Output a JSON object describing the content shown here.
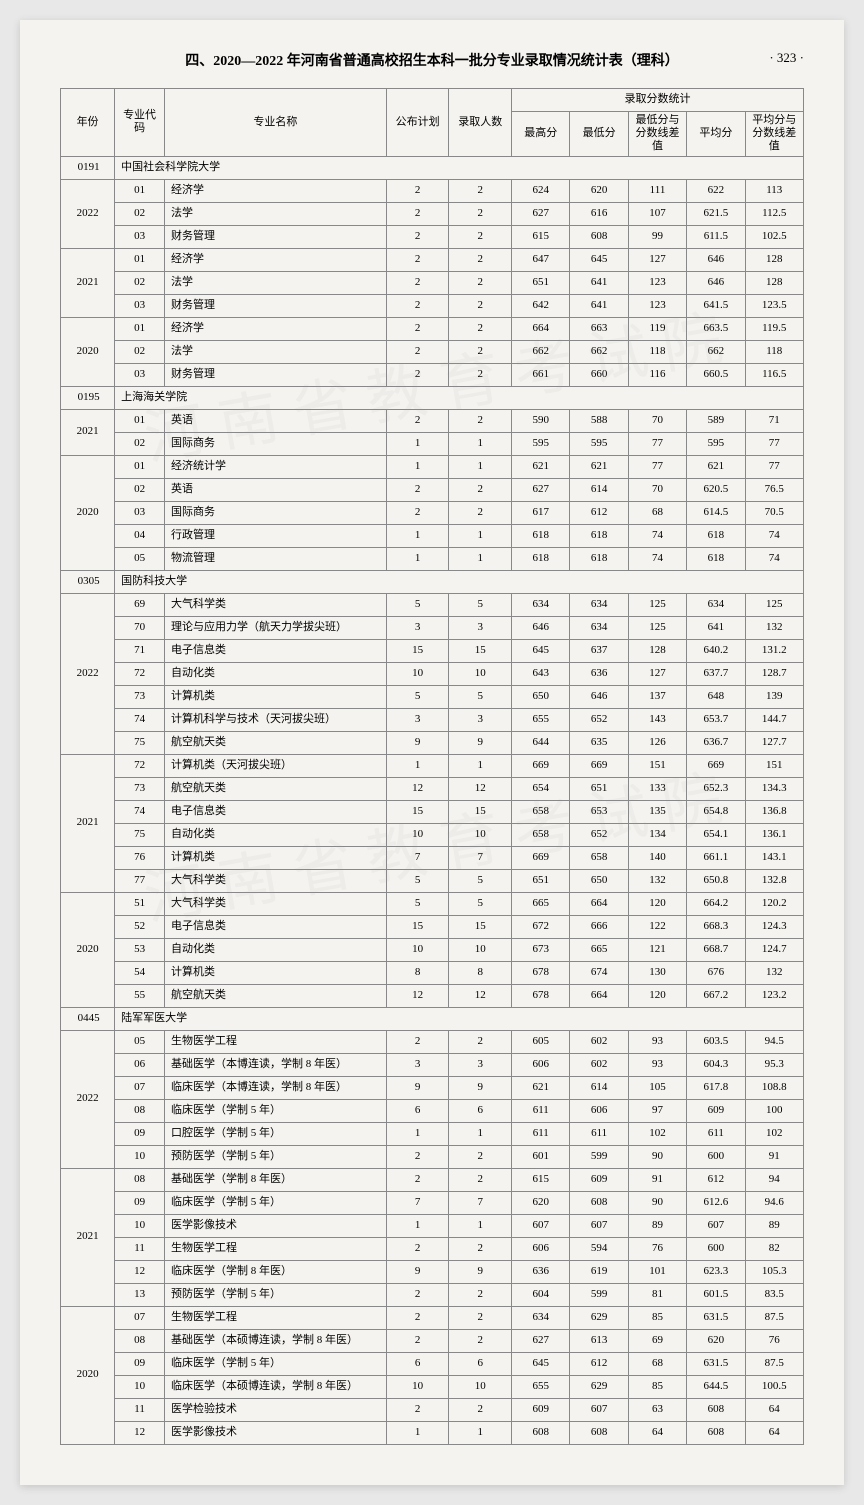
{
  "header": {
    "title": "四、2020—2022 年河南省普通高校招生本科一批分专业录取情况统计表（理科）",
    "page_num": "· 323 ·"
  },
  "columns": {
    "year": "年份",
    "major_code": "专业代码",
    "major_name": "专业名称",
    "plan": "公布计划",
    "admitted": "录取人数",
    "score_stats": "录取分数统计",
    "max": "最高分",
    "min": "最低分",
    "min_diff": "最低分与分数线差值",
    "avg": "平均分",
    "avg_diff": "平均分与分数线差值"
  },
  "schools": [
    {
      "code": "0191",
      "name": "中国社会科学院大学",
      "years": [
        {
          "year": "2022",
          "rows": [
            {
              "c": "01",
              "n": "经济学",
              "p": "2",
              "a": "2",
              "mx": "624",
              "mn": "620",
              "md": "111",
              "av": "622",
              "ad": "113"
            },
            {
              "c": "02",
              "n": "法学",
              "p": "2",
              "a": "2",
              "mx": "627",
              "mn": "616",
              "md": "107",
              "av": "621.5",
              "ad": "112.5"
            },
            {
              "c": "03",
              "n": "财务管理",
              "p": "2",
              "a": "2",
              "mx": "615",
              "mn": "608",
              "md": "99",
              "av": "611.5",
              "ad": "102.5"
            }
          ]
        },
        {
          "year": "2021",
          "rows": [
            {
              "c": "01",
              "n": "经济学",
              "p": "2",
              "a": "2",
              "mx": "647",
              "mn": "645",
              "md": "127",
              "av": "646",
              "ad": "128"
            },
            {
              "c": "02",
              "n": "法学",
              "p": "2",
              "a": "2",
              "mx": "651",
              "mn": "641",
              "md": "123",
              "av": "646",
              "ad": "128"
            },
            {
              "c": "03",
              "n": "财务管理",
              "p": "2",
              "a": "2",
              "mx": "642",
              "mn": "641",
              "md": "123",
              "av": "641.5",
              "ad": "123.5"
            }
          ]
        },
        {
          "year": "2020",
          "rows": [
            {
              "c": "01",
              "n": "经济学",
              "p": "2",
              "a": "2",
              "mx": "664",
              "mn": "663",
              "md": "119",
              "av": "663.5",
              "ad": "119.5"
            },
            {
              "c": "02",
              "n": "法学",
              "p": "2",
              "a": "2",
              "mx": "662",
              "mn": "662",
              "md": "118",
              "av": "662",
              "ad": "118"
            },
            {
              "c": "03",
              "n": "财务管理",
              "p": "2",
              "a": "2",
              "mx": "661",
              "mn": "660",
              "md": "116",
              "av": "660.5",
              "ad": "116.5"
            }
          ]
        }
      ]
    },
    {
      "code": "0195",
      "name": "上海海关学院",
      "years": [
        {
          "year": "2021",
          "rows": [
            {
              "c": "01",
              "n": "英语",
              "p": "2",
              "a": "2",
              "mx": "590",
              "mn": "588",
              "md": "70",
              "av": "589",
              "ad": "71"
            },
            {
              "c": "02",
              "n": "国际商务",
              "p": "1",
              "a": "1",
              "mx": "595",
              "mn": "595",
              "md": "77",
              "av": "595",
              "ad": "77"
            }
          ]
        },
        {
          "year": "2020",
          "rows": [
            {
              "c": "01",
              "n": "经济统计学",
              "p": "1",
              "a": "1",
              "mx": "621",
              "mn": "621",
              "md": "77",
              "av": "621",
              "ad": "77"
            },
            {
              "c": "02",
              "n": "英语",
              "p": "2",
              "a": "2",
              "mx": "627",
              "mn": "614",
              "md": "70",
              "av": "620.5",
              "ad": "76.5"
            },
            {
              "c": "03",
              "n": "国际商务",
              "p": "2",
              "a": "2",
              "mx": "617",
              "mn": "612",
              "md": "68",
              "av": "614.5",
              "ad": "70.5"
            },
            {
              "c": "04",
              "n": "行政管理",
              "p": "1",
              "a": "1",
              "mx": "618",
              "mn": "618",
              "md": "74",
              "av": "618",
              "ad": "74"
            },
            {
              "c": "05",
              "n": "物流管理",
              "p": "1",
              "a": "1",
              "mx": "618",
              "mn": "618",
              "md": "74",
              "av": "618",
              "ad": "74"
            }
          ]
        }
      ]
    },
    {
      "code": "0305",
      "name": "国防科技大学",
      "years": [
        {
          "year": "2022",
          "rows": [
            {
              "c": "69",
              "n": "大气科学类",
              "p": "5",
              "a": "5",
              "mx": "634",
              "mn": "634",
              "md": "125",
              "av": "634",
              "ad": "125"
            },
            {
              "c": "70",
              "n": "理论与应用力学（航天力学拔尖班）",
              "p": "3",
              "a": "3",
              "mx": "646",
              "mn": "634",
              "md": "125",
              "av": "641",
              "ad": "132"
            },
            {
              "c": "71",
              "n": "电子信息类",
              "p": "15",
              "a": "15",
              "mx": "645",
              "mn": "637",
              "md": "128",
              "av": "640.2",
              "ad": "131.2"
            },
            {
              "c": "72",
              "n": "自动化类",
              "p": "10",
              "a": "10",
              "mx": "643",
              "mn": "636",
              "md": "127",
              "av": "637.7",
              "ad": "128.7"
            },
            {
              "c": "73",
              "n": "计算机类",
              "p": "5",
              "a": "5",
              "mx": "650",
              "mn": "646",
              "md": "137",
              "av": "648",
              "ad": "139"
            },
            {
              "c": "74",
              "n": "计算机科学与技术（天河拔尖班）",
              "p": "3",
              "a": "3",
              "mx": "655",
              "mn": "652",
              "md": "143",
              "av": "653.7",
              "ad": "144.7"
            },
            {
              "c": "75",
              "n": "航空航天类",
              "p": "9",
              "a": "9",
              "mx": "644",
              "mn": "635",
              "md": "126",
              "av": "636.7",
              "ad": "127.7"
            }
          ]
        },
        {
          "year": "2021",
          "rows": [
            {
              "c": "72",
              "n": "计算机类（天河拔尖班）",
              "p": "1",
              "a": "1",
              "mx": "669",
              "mn": "669",
              "md": "151",
              "av": "669",
              "ad": "151"
            },
            {
              "c": "73",
              "n": "航空航天类",
              "p": "12",
              "a": "12",
              "mx": "654",
              "mn": "651",
              "md": "133",
              "av": "652.3",
              "ad": "134.3"
            },
            {
              "c": "74",
              "n": "电子信息类",
              "p": "15",
              "a": "15",
              "mx": "658",
              "mn": "653",
              "md": "135",
              "av": "654.8",
              "ad": "136.8"
            },
            {
              "c": "75",
              "n": "自动化类",
              "p": "10",
              "a": "10",
              "mx": "658",
              "mn": "652",
              "md": "134",
              "av": "654.1",
              "ad": "136.1"
            },
            {
              "c": "76",
              "n": "计算机类",
              "p": "7",
              "a": "7",
              "mx": "669",
              "mn": "658",
              "md": "140",
              "av": "661.1",
              "ad": "143.1"
            },
            {
              "c": "77",
              "n": "大气科学类",
              "p": "5",
              "a": "5",
              "mx": "651",
              "mn": "650",
              "md": "132",
              "av": "650.8",
              "ad": "132.8"
            }
          ]
        },
        {
          "year": "2020",
          "rows": [
            {
              "c": "51",
              "n": "大气科学类",
              "p": "5",
              "a": "5",
              "mx": "665",
              "mn": "664",
              "md": "120",
              "av": "664.2",
              "ad": "120.2"
            },
            {
              "c": "52",
              "n": "电子信息类",
              "p": "15",
              "a": "15",
              "mx": "672",
              "mn": "666",
              "md": "122",
              "av": "668.3",
              "ad": "124.3"
            },
            {
              "c": "53",
              "n": "自动化类",
              "p": "10",
              "a": "10",
              "mx": "673",
              "mn": "665",
              "md": "121",
              "av": "668.7",
              "ad": "124.7"
            },
            {
              "c": "54",
              "n": "计算机类",
              "p": "8",
              "a": "8",
              "mx": "678",
              "mn": "674",
              "md": "130",
              "av": "676",
              "ad": "132"
            },
            {
              "c": "55",
              "n": "航空航天类",
              "p": "12",
              "a": "12",
              "mx": "678",
              "mn": "664",
              "md": "120",
              "av": "667.2",
              "ad": "123.2"
            }
          ]
        }
      ]
    },
    {
      "code": "0445",
      "name": "陆军军医大学",
      "years": [
        {
          "year": "2022",
          "rows": [
            {
              "c": "05",
              "n": "生物医学工程",
              "p": "2",
              "a": "2",
              "mx": "605",
              "mn": "602",
              "md": "93",
              "av": "603.5",
              "ad": "94.5"
            },
            {
              "c": "06",
              "n": "基础医学（本博连读，学制 8 年医）",
              "p": "3",
              "a": "3",
              "mx": "606",
              "mn": "602",
              "md": "93",
              "av": "604.3",
              "ad": "95.3"
            },
            {
              "c": "07",
              "n": "临床医学（本博连读，学制 8 年医）",
              "p": "9",
              "a": "9",
              "mx": "621",
              "mn": "614",
              "md": "105",
              "av": "617.8",
              "ad": "108.8"
            },
            {
              "c": "08",
              "n": "临床医学（学制 5 年）",
              "p": "6",
              "a": "6",
              "mx": "611",
              "mn": "606",
              "md": "97",
              "av": "609",
              "ad": "100"
            },
            {
              "c": "09",
              "n": "口腔医学（学制 5 年）",
              "p": "1",
              "a": "1",
              "mx": "611",
              "mn": "611",
              "md": "102",
              "av": "611",
              "ad": "102"
            },
            {
              "c": "10",
              "n": "预防医学（学制 5 年）",
              "p": "2",
              "a": "2",
              "mx": "601",
              "mn": "599",
              "md": "90",
              "av": "600",
              "ad": "91"
            }
          ]
        },
        {
          "year": "2021",
          "rows": [
            {
              "c": "08",
              "n": "基础医学（学制 8 年医）",
              "p": "2",
              "a": "2",
              "mx": "615",
              "mn": "609",
              "md": "91",
              "av": "612",
              "ad": "94"
            },
            {
              "c": "09",
              "n": "临床医学（学制 5 年）",
              "p": "7",
              "a": "7",
              "mx": "620",
              "mn": "608",
              "md": "90",
              "av": "612.6",
              "ad": "94.6"
            },
            {
              "c": "10",
              "n": "医学影像技术",
              "p": "1",
              "a": "1",
              "mx": "607",
              "mn": "607",
              "md": "89",
              "av": "607",
              "ad": "89"
            },
            {
              "c": "11",
              "n": "生物医学工程",
              "p": "2",
              "a": "2",
              "mx": "606",
              "mn": "594",
              "md": "76",
              "av": "600",
              "ad": "82"
            },
            {
              "c": "12",
              "n": "临床医学（学制 8 年医）",
              "p": "9",
              "a": "9",
              "mx": "636",
              "mn": "619",
              "md": "101",
              "av": "623.3",
              "ad": "105.3"
            },
            {
              "c": "13",
              "n": "预防医学（学制 5 年）",
              "p": "2",
              "a": "2",
              "mx": "604",
              "mn": "599",
              "md": "81",
              "av": "601.5",
              "ad": "83.5"
            }
          ]
        },
        {
          "year": "2020",
          "rows": [
            {
              "c": "07",
              "n": "生物医学工程",
              "p": "2",
              "a": "2",
              "mx": "634",
              "mn": "629",
              "md": "85",
              "av": "631.5",
              "ad": "87.5"
            },
            {
              "c": "08",
              "n": "基础医学（本硕博连读，学制 8 年医）",
              "p": "2",
              "a": "2",
              "mx": "627",
              "mn": "613",
              "md": "69",
              "av": "620",
              "ad": "76"
            },
            {
              "c": "09",
              "n": "临床医学（学制 5 年）",
              "p": "6",
              "a": "6",
              "mx": "645",
              "mn": "612",
              "md": "68",
              "av": "631.5",
              "ad": "87.5"
            },
            {
              "c": "10",
              "n": "临床医学（本硕博连读，学制 8 年医）",
              "p": "10",
              "a": "10",
              "mx": "655",
              "mn": "629",
              "md": "85",
              "av": "644.5",
              "ad": "100.5"
            },
            {
              "c": "11",
              "n": "医学检验技术",
              "p": "2",
              "a": "2",
              "mx": "609",
              "mn": "607",
              "md": "63",
              "av": "608",
              "ad": "64"
            },
            {
              "c": "12",
              "n": "医学影像技术",
              "p": "1",
              "a": "1",
              "mx": "608",
              "mn": "608",
              "md": "64",
              "av": "608",
              "ad": "64"
            }
          ]
        }
      ]
    }
  ]
}
